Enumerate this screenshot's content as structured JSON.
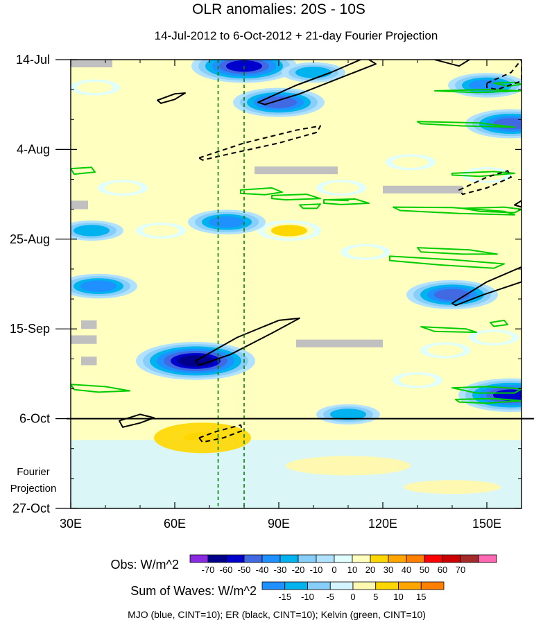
{
  "chart_data": {
    "type": "heatmap",
    "title": "OLR anomalies: 20S - 10S",
    "subtitle": "14-Jul-2012 to 6-Oct-2012 + 21-day Fourier Projection",
    "x_axis": {
      "range": [
        30,
        160
      ],
      "unit": "degrees longitude",
      "ticks": [
        {
          "value": 30,
          "label": "30E"
        },
        {
          "value": 60,
          "label": "60E"
        },
        {
          "value": 90,
          "label": "90E"
        },
        {
          "value": 120,
          "label": "120E"
        },
        {
          "value": 150,
          "label": "150E"
        }
      ]
    },
    "y_axis": {
      "range_days": [
        0,
        105
      ],
      "unit": "days since 14-Jul-2012",
      "ticks": [
        {
          "day": 0,
          "label": "14-Jul"
        },
        {
          "day": 21,
          "label": "4-Aug"
        },
        {
          "day": 42,
          "label": "25-Aug"
        },
        {
          "day": 63,
          "label": "15-Sep"
        },
        {
          "day": 84,
          "label": "6-Oct"
        },
        {
          "day": 105,
          "label": "27-Oct"
        }
      ]
    },
    "projection_label": [
      "Fourier",
      "Projection"
    ],
    "projection_boundary_day": 84,
    "reference_longitudes": [
      72.5,
      80
    ],
    "legend_obs": {
      "title": "Obs: W/m^2",
      "labels": [
        "-70",
        "-60",
        "-50",
        "-40",
        "-30",
        "-20",
        "-10",
        "0",
        "10",
        "20",
        "30",
        "40",
        "50",
        "60",
        "70"
      ],
      "colors": [
        "#8a2be2",
        "#00008b",
        "#0000cd",
        "#4169e1",
        "#1e90ff",
        "#00b2ee",
        "#87cefa",
        "#b0e2ff",
        "#e0ffff",
        "#ffffc0",
        "#ffd700",
        "#ffa500",
        "#ff7f00",
        "#ff0000",
        "#cd0000",
        "#a52a2a",
        "#ff69b4"
      ]
    },
    "legend_waves": {
      "title": "Sum of Waves: W/m^2",
      "labels": [
        "-15",
        "-10",
        "-5",
        "0",
        "5",
        "10",
        "15"
      ],
      "colors": [
        "#1e90ff",
        "#00b2ee",
        "#87cefa",
        "#d4f4ff",
        "#fff8b0",
        "#ffd700",
        "#ffa500",
        "#ff7f00"
      ]
    },
    "footnote": "MJO (blue, CINT=10); ER (black, CINT=10); Kelvin (green, CINT=10)",
    "features": {
      "negative_anomaly_spots": [
        {
          "lon": 80,
          "day": 1.5,
          "level": -50
        },
        {
          "lon": 90,
          "day": 10,
          "level": -40
        },
        {
          "lon": 66,
          "day": 70.5,
          "level": -60
        },
        {
          "lon": 157,
          "day": 15,
          "level": -40
        },
        {
          "lon": 140,
          "day": 55,
          "level": -40
        },
        {
          "lon": 157,
          "day": 78.5,
          "level": -50
        },
        {
          "lon": 150,
          "day": 6,
          "level": -30
        },
        {
          "lon": 75,
          "day": 38,
          "level": -30
        },
        {
          "lon": 38,
          "day": 53,
          "level": -30
        },
        {
          "lon": 100,
          "day": 3,
          "level": -20
        },
        {
          "lon": 36,
          "day": 40,
          "level": -20
        },
        {
          "lon": 110,
          "day": 83,
          "level": -20
        }
      ],
      "positive_anomaly_spots": [
        {
          "lon": 93,
          "day": 40,
          "level": 20
        },
        {
          "lon": 68,
          "day": 88.5,
          "level": 20
        },
        {
          "lon": 37,
          "day": 6.5,
          "level": 10
        },
        {
          "lon": 108,
          "day": 30,
          "level": 10
        },
        {
          "lon": 138,
          "day": 68,
          "level": 10
        },
        {
          "lon": 128,
          "day": 24,
          "level": 10
        },
        {
          "lon": 56,
          "day": 40,
          "level": 10
        },
        {
          "lon": 115,
          "day": 45,
          "level": 10
        },
        {
          "lon": 150,
          "day": 27,
          "level": 10
        },
        {
          "lon": 130,
          "day": 75,
          "level": 10
        },
        {
          "lon": 152,
          "day": 65,
          "level": 10
        },
        {
          "lon": 45,
          "day": 30,
          "level": 10
        }
      ],
      "missing_data_boxes": [
        {
          "lon0": 30,
          "lon1": 42,
          "day0": 0,
          "day1": 1.8
        },
        {
          "lon0": 83,
          "lon1": 107,
          "day0": 25,
          "day1": 26.8
        },
        {
          "lon0": 120,
          "lon1": 143,
          "day0": 29.5,
          "day1": 31.3
        },
        {
          "lon0": 30,
          "lon1": 35,
          "day0": 33,
          "day1": 35
        },
        {
          "lon0": 95,
          "lon1": 120,
          "day0": 65.5,
          "day1": 67.3
        },
        {
          "lon0": 33,
          "lon1": 37.5,
          "day0": 61,
          "day1": 63
        },
        {
          "lon0": 30,
          "lon1": 37.5,
          "day0": 64.5,
          "day1": 66.5
        },
        {
          "lon0": 33,
          "lon1": 37.5,
          "day0": 69.5,
          "day1": 71.5
        }
      ],
      "er_contours": [
        {
          "dashed": false,
          "points": [
            [
              84,
              10
            ],
            [
              95,
              6
            ],
            [
              105,
              3
            ],
            [
              115,
              -0.5
            ],
            [
              118,
              1
            ],
            [
              107,
              4.5
            ],
            [
              96,
              8
            ],
            [
              86,
              10.5
            ]
          ]
        },
        {
          "dashed": false,
          "points": [
            [
              135,
              0
            ],
            [
              147,
              -1
            ],
            [
              142,
              1.5
            ]
          ]
        },
        {
          "dashed": false,
          "points": [
            [
              66,
              70.5
            ],
            [
              78,
              65
            ],
            [
              90,
              61
            ],
            [
              96,
              60.5
            ],
            [
              88,
              64
            ],
            [
              76,
              69
            ],
            [
              67,
              71.5
            ]
          ]
        },
        {
          "dashed": false,
          "points": [
            [
              140,
              57
            ],
            [
              150,
              52
            ],
            [
              160,
              48.5
            ],
            [
              160,
              52
            ],
            [
              149,
              55
            ],
            [
              141,
              57.5
            ]
          ]
        },
        {
          "dashed": false,
          "points": [
            [
              44,
              84.5
            ],
            [
              50,
              83
            ],
            [
              54,
              83.8
            ],
            [
              50,
              85
            ],
            [
              45,
              86
            ]
          ]
        },
        {
          "dashed": false,
          "points": [
            [
              55,
              9.5
            ],
            [
              60,
              8
            ],
            [
              63,
              7.8
            ],
            [
              60,
              9.3
            ],
            [
              56,
              10.2
            ]
          ]
        },
        {
          "dashed": false,
          "points": [
            [
              158,
              34
            ],
            [
              160,
              33
            ],
            [
              160,
              34.5
            ]
          ]
        },
        {
          "dashed": true,
          "points": [
            [
              67,
              23
            ],
            [
              80,
              19.5
            ],
            [
              95,
              16.5
            ],
            [
              102,
              15.5
            ],
            [
              101,
              17
            ],
            [
              90,
              19.5
            ],
            [
              76,
              22
            ],
            [
              68,
              23.5
            ]
          ]
        },
        {
          "dashed": true,
          "points": [
            [
              150,
              5.5
            ],
            [
              157,
              3
            ],
            [
              160,
              0
            ],
            [
              160,
              5
            ],
            [
              153,
              7
            ],
            [
              150,
              6.5
            ]
          ]
        },
        {
          "dashed": true,
          "points": [
            [
              142,
              30.5
            ],
            [
              150,
              27.5
            ],
            [
              156,
              26
            ],
            [
              157,
              27.5
            ],
            [
              150,
              30
            ],
            [
              143,
              31.5
            ]
          ]
        },
        {
          "dashed": true,
          "points": [
            [
              67,
              88.5
            ],
            [
              72,
              87
            ],
            [
              79,
              85.5
            ],
            [
              79.5,
              86.8
            ],
            [
              74,
              88.5
            ],
            [
              68,
              89.5
            ]
          ]
        }
      ],
      "kelvin_contours": [
        {
          "points": [
            [
              30,
              25.5
            ],
            [
              36,
              25.2
            ],
            [
              37,
              26.3
            ],
            [
              31,
              26.8
            ]
          ]
        },
        {
          "points": [
            [
              79,
              30.5
            ],
            [
              88,
              30
            ],
            [
              91,
              31
            ],
            [
              86,
              31.6
            ],
            [
              79,
              31.3
            ]
          ]
        },
        {
          "points": [
            [
              88,
              31.8
            ],
            [
              98,
              31.5
            ],
            [
              102,
              32.5
            ],
            [
              92,
              32.8
            ],
            [
              88,
              32.5
            ]
          ]
        },
        {
          "points": [
            [
              103,
              32.8
            ],
            [
              112,
              32.6
            ],
            [
              116,
              33.6
            ],
            [
              108,
              33.9
            ],
            [
              103,
              33.6
            ]
          ]
        },
        {
          "points": [
            [
              96,
              34
            ],
            [
              102,
              33.8
            ],
            [
              101,
              34.8
            ],
            [
              97,
              34.8
            ]
          ]
        },
        {
          "points": [
            [
              123,
              34.5
            ],
            [
              140,
              34.6
            ],
            [
              155,
              35.5
            ],
            [
              158,
              36.3
            ],
            [
              142,
              36
            ],
            [
              125,
              35.3
            ]
          ]
        },
        {
          "points": [
            [
              140,
              26.6
            ],
            [
              152,
              26.2
            ],
            [
              158,
              26.6
            ],
            [
              148,
              27.3
            ],
            [
              140,
              27
            ]
          ]
        },
        {
          "points": [
            [
              135,
              7.3
            ],
            [
              150,
              7
            ],
            [
              160,
              7.3
            ],
            [
              147,
              7.7
            ]
          ]
        },
        {
          "points": [
            [
              152,
              5.5
            ],
            [
              158,
              5.3
            ],
            [
              160,
              5.8
            ],
            [
              156,
              6.2
            ]
          ]
        },
        {
          "points": [
            [
              130,
              14.5
            ],
            [
              148,
              14.8
            ],
            [
              158,
              15.8
            ],
            [
              143,
              15.5
            ],
            [
              131,
              15
            ]
          ]
        },
        {
          "points": [
            [
              143,
              34.8
            ],
            [
              155,
              34.5
            ],
            [
              160,
              35
            ],
            [
              158,
              35.8
            ],
            [
              148,
              35.5
            ]
          ]
        },
        {
          "points": [
            [
              122,
              46
            ],
            [
              140,
              46.8
            ],
            [
              155,
              47.8
            ],
            [
              152,
              48.8
            ],
            [
              136,
              48
            ],
            [
              122,
              47
            ]
          ]
        },
        {
          "points": [
            [
              130,
              44
            ],
            [
              145,
              44.5
            ],
            [
              153,
              45.5
            ],
            [
              143,
              45.5
            ],
            [
              131,
              45
            ]
          ]
        },
        {
          "points": [
            [
              131,
              62.5
            ],
            [
              144,
              63
            ],
            [
              147,
              63.8
            ],
            [
              135,
              63.6
            ]
          ]
        },
        {
          "points": [
            [
              151,
              61.5
            ],
            [
              155,
              61
            ],
            [
              156,
              62
            ],
            [
              152,
              62.4
            ]
          ]
        },
        {
          "points": [
            [
              30,
              76
            ],
            [
              40,
              76.5
            ],
            [
              47,
              77.5
            ],
            [
              38,
              77.8
            ],
            [
              31,
              77.2
            ]
          ]
        },
        {
          "points": [
            [
              140,
              76.8
            ],
            [
              150,
              76.5
            ],
            [
              160,
              77
            ],
            [
              158,
              78
            ],
            [
              147,
              78
            ]
          ]
        },
        {
          "points": [
            [
              141,
              79.5
            ],
            [
              152,
              79.3
            ],
            [
              160,
              79.8
            ],
            [
              150,
              80.4
            ],
            [
              142,
              80.1
            ]
          ]
        },
        {
          "points": [
            [
              104,
              32.8
            ],
            [
              110,
              33
            ]
          ]
        }
      ]
    }
  }
}
